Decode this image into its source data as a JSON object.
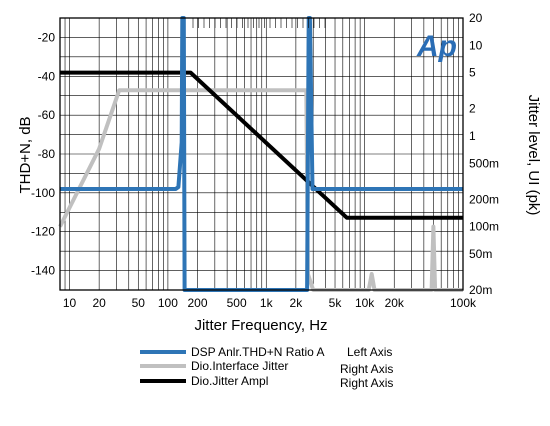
{
  "chart_data": {
    "type": "line",
    "xlabel": "Jitter Frequency, Hz",
    "ylabel_left": "THD+N, dB",
    "ylabel_right": "Jitter level, UI (pk)",
    "x_scale": "log",
    "xlim": [
      8,
      100000
    ],
    "ylim_left": [
      -150,
      -10
    ],
    "ylim_right_log": [
      0.02,
      20
    ],
    "grid": true,
    "x_ticks": [
      {
        "value": 10,
        "label": "10"
      },
      {
        "value": 20,
        "label": "20"
      },
      {
        "value": 50,
        "label": "50"
      },
      {
        "value": 100,
        "label": "100"
      },
      {
        "value": 200,
        "label": "200"
      },
      {
        "value": 500,
        "label": "500"
      },
      {
        "value": 1000,
        "label": "1k"
      },
      {
        "value": 2000,
        "label": "2k"
      },
      {
        "value": 5000,
        "label": "5k"
      },
      {
        "value": 10000,
        "label": "10k"
      },
      {
        "value": 20000,
        "label": "20k"
      },
      {
        "value": 100000,
        "label": "100k"
      }
    ],
    "y_left_ticks": [
      {
        "value": -20,
        "label": "-20"
      },
      {
        "value": -40,
        "label": "-40"
      },
      {
        "value": -60,
        "label": "-60"
      },
      {
        "value": -80,
        "label": "-80"
      },
      {
        "value": -100,
        "label": "-100"
      },
      {
        "value": -120,
        "label": "-120"
      },
      {
        "value": -140,
        "label": "-140"
      }
    ],
    "y_right_ticks": [
      {
        "value": 20,
        "label": "20"
      },
      {
        "value": 10,
        "label": "10"
      },
      {
        "value": 5,
        "label": "5"
      },
      {
        "value": 2,
        "label": "2"
      },
      {
        "value": 1,
        "label": "1"
      },
      {
        "value": 0.5,
        "label": "500m"
      },
      {
        "value": 0.2,
        "label": "200m"
      },
      {
        "value": 0.1,
        "label": "100m"
      },
      {
        "value": 0.05,
        "label": "50m"
      },
      {
        "value": 0.02,
        "label": "20m"
      }
    ],
    "series": [
      {
        "name": "DSP Anlr.THD+N Ratio A",
        "axis_label": "Left Axis",
        "axis": "left",
        "color": "#2e75b6",
        "points": [
          [
            8,
            -98
          ],
          [
            120,
            -98
          ],
          [
            128,
            -97
          ],
          [
            138,
            -74
          ],
          [
            140,
            -10
          ],
          [
            145,
            -10
          ],
          [
            148,
            -150
          ],
          [
            2600,
            -150
          ],
          [
            2700,
            -10
          ],
          [
            2780,
            -10
          ],
          [
            2950,
            -98
          ],
          [
            100000,
            -98
          ]
        ]
      },
      {
        "name": "Dio.Interface Jitter",
        "axis_label": "Right Axis",
        "axis": "right",
        "color": "#c0c0c0",
        "points": [
          [
            8,
            0.1
          ],
          [
            20,
            0.72
          ],
          [
            32,
            3.2
          ],
          [
            2550,
            3.2
          ],
          [
            2650,
            0.03
          ],
          [
            3000,
            0.02
          ],
          [
            11000,
            0.02
          ],
          [
            11800,
            0.03
          ],
          [
            12600,
            0.02
          ],
          [
            48000,
            0.02
          ],
          [
            50000,
            0.1
          ],
          [
            52000,
            0.02
          ],
          [
            100000,
            0.02
          ]
        ]
      },
      {
        "name": "Dio.Jitter Ampl",
        "axis_label": "Right Axis",
        "axis": "right",
        "color": "#000000",
        "points": [
          [
            8,
            5
          ],
          [
            170,
            5
          ],
          [
            6600,
            0.125
          ],
          [
            100000,
            0.125
          ]
        ]
      }
    ]
  },
  "logo": {
    "text": "Ap",
    "color": "#2a6db5"
  }
}
